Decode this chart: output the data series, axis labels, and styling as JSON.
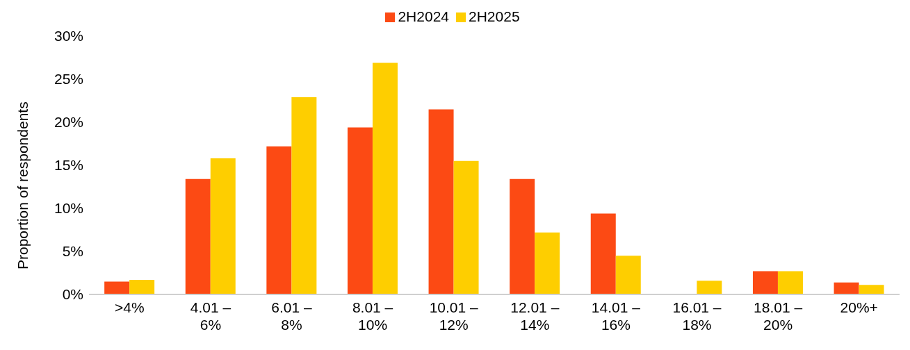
{
  "chart_data": {
    "type": "bar",
    "ylabel": "Proportion of respondents",
    "categories": [
      ">4%",
      "4.01 – 6%",
      "6.01 – 8%",
      "8.01 – 10%",
      "10.01 – 12%",
      "12.01 – 14%",
      "14.01 – 16%",
      "16.01 – 18%",
      "18.01 – 20%",
      "20%+"
    ],
    "series": [
      {
        "name": "2H2024",
        "color": "#fc4a14",
        "values": [
          1.5,
          13.4,
          17.2,
          19.4,
          21.5,
          13.4,
          9.4,
          0,
          2.7,
          1.4
        ]
      },
      {
        "name": "2H2025",
        "color": "#fece00",
        "values": [
          1.7,
          15.8,
          22.9,
          26.9,
          15.5,
          7.2,
          4.5,
          1.6,
          2.7,
          1.1
        ]
      }
    ],
    "ylim": [
      0,
      30
    ],
    "yticks": [
      {
        "value": 0,
        "label": "0%"
      },
      {
        "value": 5,
        "label": "5%"
      },
      {
        "value": 10,
        "label": "10%"
      },
      {
        "value": 15,
        "label": "15%"
      },
      {
        "value": 20,
        "label": "20%"
      },
      {
        "value": 25,
        "label": "25%"
      },
      {
        "value": 30,
        "label": "30%"
      }
    ],
    "grid": false,
    "legend": "top"
  }
}
